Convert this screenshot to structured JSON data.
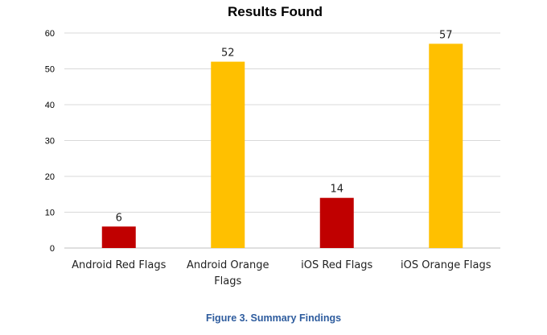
{
  "chart_data": {
    "type": "bar",
    "title": "Results Found",
    "categories": [
      [
        "Android Red Flags"
      ],
      [
        "Android Orange",
        "Flags"
      ],
      [
        "iOS Red Flags"
      ],
      [
        "iOS Orange Flags"
      ]
    ],
    "values": [
      6,
      52,
      14,
      57
    ],
    "bar_colors": [
      "#c00000",
      "#ffc000",
      "#c00000",
      "#ffc000"
    ],
    "ylim": [
      0,
      60
    ],
    "yticks": [
      0,
      10,
      20,
      30,
      40,
      50,
      60
    ],
    "grid": true,
    "legend": "none",
    "data_labels": true,
    "xlabel": "",
    "ylabel": ""
  },
  "caption": "Figure 3. Summary Findings"
}
